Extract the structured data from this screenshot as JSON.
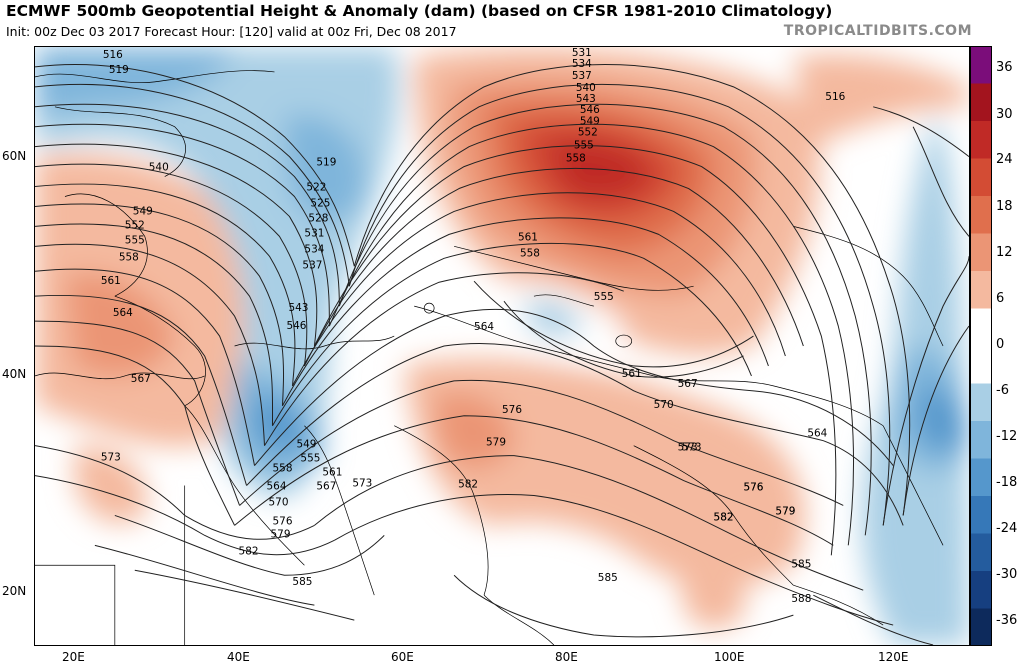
{
  "header": {
    "title": "ECMWF 500mb Geopotential Height & Anomaly (dam) (based on CFSR 1981-2010 Climatology)",
    "subtitle": "Init: 00z Dec 03 2017   Forecast Hour: [120]   valid at 00z Fri, Dec 08 2017",
    "source": "TROPICALTIDBITS.COM"
  },
  "axes": {
    "x_ticks": [
      "20E",
      "40E",
      "60E",
      "80E",
      "100E",
      "120E"
    ],
    "y_ticks": [
      "60N",
      "40N",
      "20N"
    ]
  },
  "colorbar": {
    "labels": [
      "36",
      "30",
      "24",
      "18",
      "12",
      "6",
      "0",
      "-6",
      "-12",
      "-18",
      "-24",
      "-30",
      "-36"
    ],
    "colors": [
      "#7b0d7a",
      "#a3141e",
      "#c02a26",
      "#d34c34",
      "#e06f4d",
      "#eb9575",
      "#f4b99f",
      "#ffffff",
      "#ffffff",
      "#a9cfe5",
      "#7fb5db",
      "#5597cc",
      "#3678b8",
      "#245c9e",
      "#163f80",
      "#0d2a5c"
    ]
  },
  "contour_labels": [
    "516",
    "519",
    "540",
    "549",
    "552",
    "555",
    "558",
    "561",
    "564",
    "567",
    "573",
    "519",
    "522",
    "525",
    "528",
    "531",
    "534",
    "537",
    "543",
    "546",
    "549",
    "555",
    "558",
    "561",
    "564",
    "567",
    "570",
    "573",
    "576",
    "579",
    "582",
    "585",
    "531",
    "534",
    "537",
    "540",
    "543",
    "546",
    "549",
    "552",
    "555",
    "558",
    "561",
    "558",
    "555",
    "561",
    "564",
    "567",
    "570",
    "573",
    "576",
    "579",
    "582",
    "576",
    "579",
    "582",
    "573",
    "576",
    "579",
    "582",
    "585",
    "588",
    "585",
    "564",
    "516"
  ]
}
